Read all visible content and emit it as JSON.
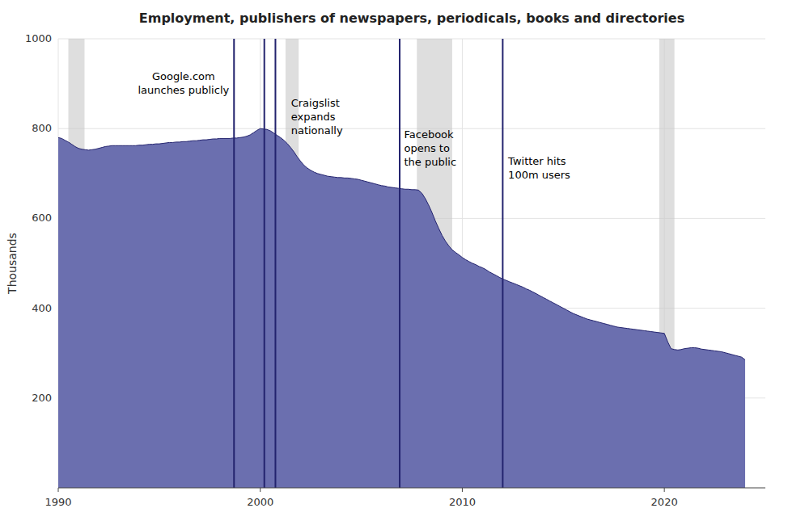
{
  "chart_data": {
    "type": "area",
    "title": "Employment, publishers of newspapers, periodicals, books and directories",
    "y_label": "Thousands",
    "color": "#6b6faf",
    "xlim": [
      1990,
      2025
    ],
    "ylim": [
      0,
      1000
    ],
    "xticks": [
      1990,
      2000,
      2010,
      2020
    ],
    "yticks": [
      200,
      400,
      600,
      800,
      1000
    ],
    "grid": true,
    "recessions": [
      [
        1990.5,
        1991.3
      ],
      [
        2001.25,
        2001.9
      ],
      [
        2007.75,
        2009.5
      ],
      [
        2019.75,
        2020.5
      ]
    ],
    "vlines": [
      1998.7,
      2000.2,
      2000.75,
      2006.9,
      2012.0
    ],
    "annotations": [
      {
        "x": 1996.2,
        "y": 930,
        "text": "Google.com\nlaunches publicly"
      },
      {
        "x": 2001.4,
        "y": 870,
        "text": "Craigslist\nexpands\nnationally"
      },
      {
        "x": 2007.0,
        "y": 800,
        "text": "Facebook\nopens to\nthe public"
      },
      {
        "x": 2012.15,
        "y": 740,
        "text": "Twitter hits\n100m users"
      }
    ],
    "x": [
      1990.0,
      1990.17,
      1990.33,
      1990.5,
      1990.67,
      1990.83,
      1991.0,
      1991.17,
      1991.33,
      1991.5,
      1991.67,
      1991.83,
      1992.0,
      1992.17,
      1992.33,
      1992.5,
      1992.67,
      1992.83,
      1993.0,
      1993.17,
      1993.33,
      1993.5,
      1993.67,
      1993.83,
      1994.0,
      1994.17,
      1994.33,
      1994.5,
      1994.67,
      1994.83,
      1995.0,
      1995.17,
      1995.33,
      1995.5,
      1995.67,
      1995.83,
      1996.0,
      1996.17,
      1996.33,
      1996.5,
      1996.67,
      1996.83,
      1997.0,
      1997.17,
      1997.33,
      1997.5,
      1997.67,
      1997.83,
      1998.0,
      1998.17,
      1998.33,
      1998.5,
      1998.67,
      1998.83,
      1999.0,
      1999.17,
      1999.33,
      1999.5,
      1999.67,
      1999.83,
      2000.0,
      2000.17,
      2000.33,
      2000.5,
      2000.67,
      2000.83,
      2001.0,
      2001.17,
      2001.33,
      2001.5,
      2001.67,
      2001.83,
      2002.0,
      2002.17,
      2002.33,
      2002.5,
      2002.67,
      2002.83,
      2003.0,
      2003.17,
      2003.33,
      2003.5,
      2003.67,
      2003.83,
      2004.0,
      2004.17,
      2004.33,
      2004.5,
      2004.67,
      2004.83,
      2005.0,
      2005.17,
      2005.33,
      2005.5,
      2005.67,
      2005.83,
      2006.0,
      2006.17,
      2006.33,
      2006.5,
      2006.67,
      2006.83,
      2007.0,
      2007.17,
      2007.33,
      2007.5,
      2007.67,
      2007.83,
      2008.0,
      2008.17,
      2008.33,
      2008.5,
      2008.67,
      2008.83,
      2009.0,
      2009.17,
      2009.33,
      2009.5,
      2009.67,
      2009.83,
      2010.0,
      2010.17,
      2010.33,
      2010.5,
      2010.67,
      2010.83,
      2011.0,
      2011.17,
      2011.33,
      2011.5,
      2011.67,
      2011.83,
      2012.0,
      2012.17,
      2012.33,
      2012.5,
      2012.67,
      2012.83,
      2013.0,
      2013.17,
      2013.33,
      2013.5,
      2013.67,
      2013.83,
      2014.0,
      2014.17,
      2014.33,
      2014.5,
      2014.67,
      2014.83,
      2015.0,
      2015.17,
      2015.33,
      2015.5,
      2015.67,
      2015.83,
      2016.0,
      2016.17,
      2016.33,
      2016.5,
      2016.67,
      2016.83,
      2017.0,
      2017.17,
      2017.33,
      2017.5,
      2017.67,
      2017.83,
      2018.0,
      2018.17,
      2018.33,
      2018.5,
      2018.67,
      2018.83,
      2019.0,
      2019.17,
      2019.33,
      2019.5,
      2019.67,
      2019.83,
      2020.0,
      2020.17,
      2020.33,
      2020.5,
      2020.67,
      2020.83,
      2021.0,
      2021.17,
      2021.33,
      2021.5,
      2021.67,
      2021.83,
      2022.0,
      2022.17,
      2022.33,
      2022.5,
      2022.67,
      2022.83,
      2023.0,
      2023.17,
      2023.33,
      2023.5,
      2023.67,
      2023.83,
      2024.0
    ],
    "values": [
      780,
      778,
      774,
      770,
      765,
      760,
      756,
      754,
      753,
      752,
      753,
      754,
      756,
      758,
      760,
      761,
      762,
      762,
      762,
      762,
      762,
      762,
      762,
      762,
      763,
      763,
      764,
      765,
      765,
      766,
      766,
      767,
      768,
      769,
      769,
      770,
      770,
      771,
      771,
      772,
      773,
      773,
      774,
      775,
      775,
      776,
      777,
      777,
      778,
      778,
      778,
      778,
      779,
      779,
      780,
      781,
      783,
      786,
      791,
      796,
      800,
      799,
      798,
      795,
      790,
      785,
      780,
      774,
      767,
      758,
      748,
      737,
      727,
      718,
      712,
      707,
      703,
      700,
      698,
      696,
      694,
      693,
      692,
      691,
      691,
      690,
      690,
      689,
      688,
      687,
      685,
      683,
      681,
      679,
      677,
      675,
      673,
      672,
      670,
      669,
      668,
      667,
      666,
      665,
      665,
      664,
      664,
      663,
      656,
      644,
      630,
      613,
      594,
      578,
      562,
      549,
      539,
      530,
      524,
      519,
      513,
      508,
      504,
      500,
      497,
      493,
      490,
      486,
      481,
      477,
      473,
      469,
      465,
      462,
      459,
      456,
      453,
      450,
      447,
      443,
      440,
      436,
      432,
      428,
      424,
      420,
      416,
      412,
      408,
      404,
      400,
      396,
      392,
      388,
      385,
      382,
      379,
      376,
      374,
      372,
      370,
      368,
      366,
      364,
      362,
      360,
      358,
      357,
      356,
      355,
      354,
      353,
      352,
      351,
      350,
      349,
      348,
      347,
      346,
      345,
      344,
      325,
      310,
      308,
      307,
      308,
      310,
      311,
      312,
      312,
      311,
      309,
      308,
      307,
      306,
      305,
      304,
      303,
      301,
      299,
      297,
      295,
      293,
      291,
      285
    ]
  }
}
